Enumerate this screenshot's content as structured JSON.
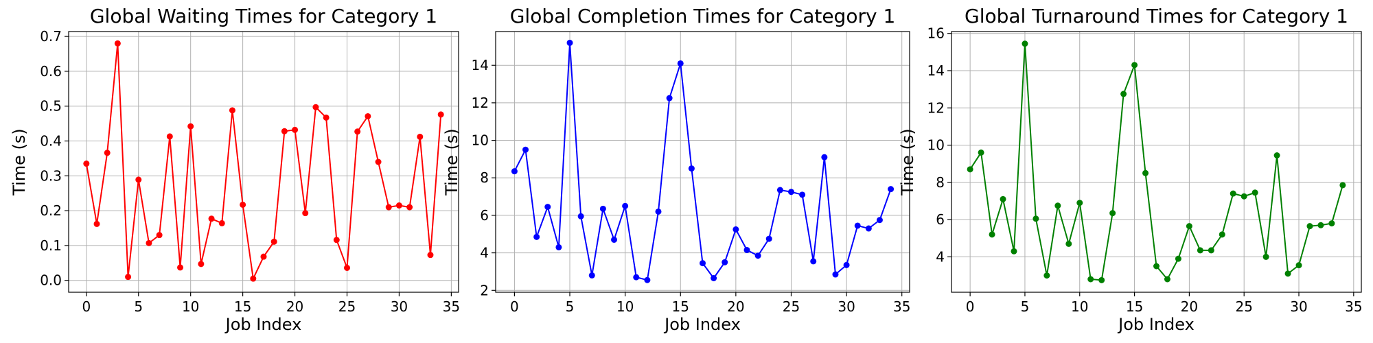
{
  "chart_data": [
    {
      "type": "line",
      "title": "Global Waiting Times for Category 1",
      "xlabel": "Job Index",
      "ylabel": "Time (s)",
      "color": "#ff0000",
      "xlim": [
        -1.7,
        35.7
      ],
      "ylim": [
        -0.034,
        0.714
      ],
      "xticks": [
        0,
        5,
        10,
        15,
        20,
        25,
        30,
        35
      ],
      "yticks": [
        0.0,
        0.1,
        0.2,
        0.3,
        0.4,
        0.5,
        0.6,
        0.7
      ],
      "ytick_labels": [
        "0.0",
        "0.1",
        "0.2",
        "0.3",
        "0.4",
        "0.5",
        "0.6",
        "0.7"
      ],
      "grid": true,
      "x": [
        0,
        1,
        2,
        3,
        4,
        5,
        6,
        7,
        8,
        9,
        10,
        11,
        12,
        13,
        14,
        15,
        16,
        17,
        18,
        19,
        20,
        21,
        22,
        23,
        24,
        25,
        26,
        27,
        28,
        29,
        30,
        31,
        32,
        33,
        34
      ],
      "values": [
        0.335,
        0.162,
        0.366,
        0.68,
        0.01,
        0.289,
        0.107,
        0.13,
        0.413,
        0.037,
        0.442,
        0.047,
        0.177,
        0.164,
        0.488,
        0.217,
        0.005,
        0.068,
        0.111,
        0.428,
        0.432,
        0.193,
        0.497,
        0.467,
        0.116,
        0.036,
        0.427,
        0.471,
        0.34,
        0.21,
        0.215,
        0.21,
        0.412,
        0.073,
        0.476
      ]
    },
    {
      "type": "line",
      "title": "Global Completion Times for Category 1",
      "xlabel": "Job Index",
      "ylabel": "Time (s)",
      "color": "#0000ff",
      "xlim": [
        -1.7,
        35.7
      ],
      "ylim": [
        1.9,
        15.8
      ],
      "xticks": [
        0,
        5,
        10,
        15,
        20,
        25,
        30,
        35
      ],
      "yticks": [
        2,
        4,
        6,
        8,
        10,
        12,
        14
      ],
      "ytick_labels": [
        "2",
        "4",
        "6",
        "8",
        "10",
        "12",
        "14"
      ],
      "grid": true,
      "x": [
        0,
        1,
        2,
        3,
        4,
        5,
        6,
        7,
        8,
        9,
        10,
        11,
        12,
        13,
        14,
        15,
        16,
        17,
        18,
        19,
        20,
        21,
        22,
        23,
        24,
        25,
        26,
        27,
        28,
        29,
        30,
        31,
        32,
        33,
        34
      ],
      "values": [
        8.35,
        9.5,
        4.85,
        6.45,
        4.3,
        15.2,
        5.95,
        2.8,
        6.35,
        4.7,
        6.5,
        2.7,
        2.55,
        6.2,
        12.25,
        14.1,
        8.5,
        3.45,
        2.65,
        3.5,
        5.25,
        4.15,
        3.85,
        4.75,
        7.35,
        7.25,
        7.1,
        3.55,
        9.1,
        2.85,
        3.35,
        5.45,
        5.3,
        5.75,
        7.4
      ]
    },
    {
      "type": "line",
      "title": "Global Turnaround Times for Category 1",
      "xlabel": "Job Index",
      "ylabel": "Time (s)",
      "color": "#008000",
      "xlim": [
        -1.7,
        35.7
      ],
      "ylim": [
        2.1,
        16.1
      ],
      "xticks": [
        0,
        5,
        10,
        15,
        20,
        25,
        30,
        35
      ],
      "yticks": [
        4,
        6,
        8,
        10,
        12,
        14,
        16
      ],
      "ytick_labels": [
        "4",
        "6",
        "8",
        "10",
        "12",
        "14",
        "16"
      ],
      "grid": true,
      "x": [
        0,
        1,
        2,
        3,
        4,
        5,
        6,
        7,
        8,
        9,
        10,
        11,
        12,
        13,
        14,
        15,
        16,
        17,
        18,
        19,
        20,
        21,
        22,
        23,
        24,
        25,
        26,
        27,
        28,
        29,
        30,
        31,
        32,
        33,
        34
      ],
      "values": [
        8.7,
        9.6,
        5.2,
        7.1,
        4.3,
        15.45,
        6.05,
        3.0,
        6.75,
        4.7,
        6.9,
        2.8,
        2.75,
        6.35,
        12.75,
        14.3,
        8.5,
        3.5,
        2.8,
        3.9,
        5.65,
        4.35,
        4.35,
        5.2,
        7.4,
        7.25,
        7.45,
        4.0,
        9.45,
        3.1,
        3.55,
        5.65,
        5.7,
        5.8,
        7.85
      ]
    }
  ]
}
